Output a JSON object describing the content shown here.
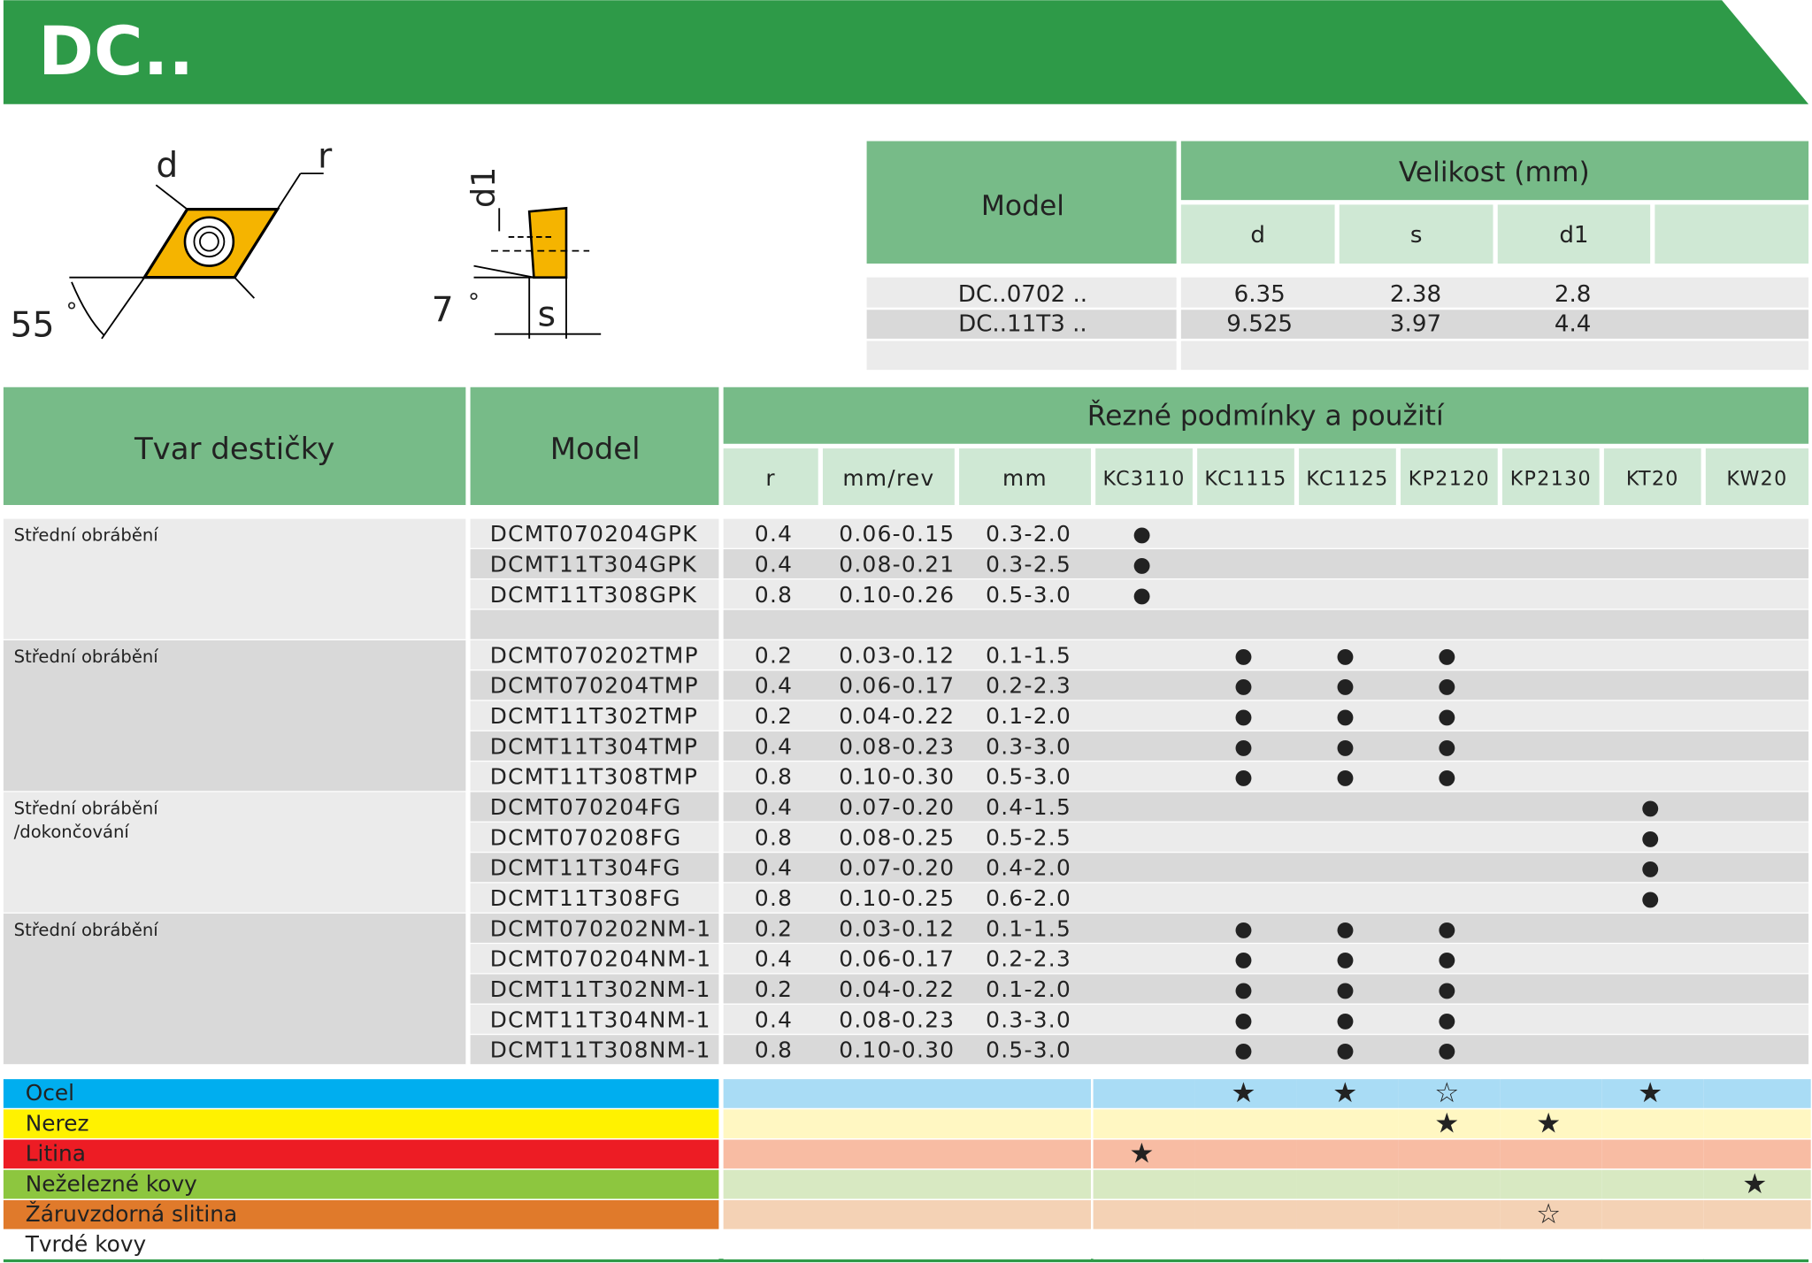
{
  "header": {
    "title": "DC.."
  },
  "diagram": {
    "front": {
      "d": "d",
      "r": "r",
      "angle": "55",
      "degree": "°"
    },
    "side": {
      "d1": "d1",
      "angle": "7",
      "degree": "°",
      "s": "s"
    }
  },
  "size_table": {
    "model_header": "Model",
    "size_header": "Velikost (mm)",
    "columns": [
      "d",
      "s",
      "d1"
    ],
    "rows": [
      [
        "DC..0702 ..",
        "6.35",
        "2.38",
        "2.8"
      ],
      [
        "DC..11T3 ..",
        "9.525",
        "3.97",
        "4.4"
      ]
    ]
  },
  "main_table": {
    "shape_header": "Tvar destičky",
    "model_header": "Model",
    "conditions_header": "Řezné podmínky a použití",
    "columns": [
      "r",
      "mm/rev",
      "mm",
      "KC3110",
      "KC1115",
      "KC1125",
      "KP2120",
      "KP2130",
      "KT20",
      "KW20"
    ],
    "groups": [
      {
        "label": [
          "Střední obrábění"
        ],
        "rows": [
          [
            "DCMT070204GPK",
            "0.4",
            "0.06-0.15",
            "0.3-2.0",
            "●",
            null,
            null,
            null,
            null,
            null,
            null
          ],
          [
            "DCMT11T304GPK",
            "0.4",
            "0.08-0.21",
            "0.3-2.5",
            "●",
            null,
            null,
            null,
            null,
            null,
            null
          ],
          [
            "DCMT11T308GPK",
            "0.8",
            "0.10-0.26",
            "0.5-3.0",
            "●",
            null,
            null,
            null,
            null,
            null,
            null
          ]
        ]
      },
      {
        "label": [
          "Střední obrábění"
        ],
        "rows": [
          [
            "DCMT070202TMP",
            "0.2",
            "0.03-0.12",
            "0.1-1.5",
            null,
            "●",
            "●",
            "●",
            null,
            null,
            null
          ],
          [
            "DCMT070204TMP",
            "0.4",
            "0.06-0.17",
            "0.2-2.3",
            null,
            "●",
            "●",
            "●",
            null,
            null,
            null
          ],
          [
            "DCMT11T302TMP",
            "0.2",
            "0.04-0.22",
            "0.1-2.0",
            null,
            "●",
            "●",
            "●",
            null,
            null,
            null
          ],
          [
            "DCMT11T304TMP",
            "0.4",
            "0.08-0.23",
            "0.3-3.0",
            null,
            "●",
            "●",
            "●",
            null,
            null,
            null
          ],
          [
            "DCMT11T308TMP",
            "0.8",
            "0.10-0.30",
            "0.5-3.0",
            null,
            "●",
            "●",
            "●",
            null,
            null,
            null
          ]
        ]
      },
      {
        "label": [
          "Střední obrábění",
          "/dokončování"
        ],
        "rows": [
          [
            "DCMT070204FG",
            "0.4",
            "0.07-0.20",
            "0.4-1.5",
            null,
            null,
            null,
            null,
            null,
            "●",
            null
          ],
          [
            "DCMT070208FG",
            "0.8",
            "0.08-0.25",
            "0.5-2.5",
            null,
            null,
            null,
            null,
            null,
            "●",
            null
          ],
          [
            "DCMT11T304FG",
            "0.4",
            "0.07-0.20",
            "0.4-2.0",
            null,
            null,
            null,
            null,
            null,
            "●",
            null
          ],
          [
            "DCMT11T308FG",
            "0.8",
            "0.10-0.25",
            "0.6-2.0",
            null,
            null,
            null,
            null,
            null,
            "●",
            null
          ]
        ]
      },
      {
        "label": [
          "Střední obrábění"
        ],
        "rows": [
          [
            "DCMT070202NM-1",
            "0.2",
            "0.03-0.12",
            "0.1-1.5",
            null,
            "●",
            "●",
            "●",
            null,
            null,
            null
          ],
          [
            "DCMT070204NM-1",
            "0.4",
            "0.06-0.17",
            "0.2-2.3",
            null,
            "●",
            "●",
            "●",
            null,
            null,
            null
          ],
          [
            "DCMT11T302NM-1",
            "0.2",
            "0.04-0.22",
            "0.1-2.0",
            null,
            "●",
            "●",
            "●",
            null,
            null,
            null
          ],
          [
            "DCMT11T304NM-1",
            "0.4",
            "0.08-0.23",
            "0.3-3.0",
            null,
            "●",
            "●",
            "●",
            null,
            null,
            null
          ],
          [
            "DCMT11T308NM-1",
            "0.8",
            "0.10-0.30",
            "0.5-3.0",
            null,
            "●",
            "●",
            "●",
            null,
            null,
            null
          ]
        ]
      }
    ]
  },
  "materials": [
    {
      "name": "Ocel",
      "color": "#00aeef",
      "tint": "#a9dcf5",
      "marks": [
        null,
        "★",
        "★",
        "☆",
        null,
        "★",
        null
      ]
    },
    {
      "name": "Nerez",
      "color": "#fff200",
      "tint": "#fff7c2",
      "marks": [
        null,
        null,
        null,
        "★",
        "★",
        null,
        null
      ]
    },
    {
      "name": "Litina",
      "color": "#ed1c24",
      "tint": "#f8bca3",
      "marks": [
        "★",
        null,
        null,
        null,
        null,
        null,
        null
      ]
    },
    {
      "name": "Neželezné kovy",
      "color": "#8dc63f",
      "tint": "#d8e9c2",
      "marks": [
        null,
        null,
        null,
        null,
        null,
        null,
        "★"
      ]
    },
    {
      "name": "Žáruvzdorná slitina",
      "color": "#e07a2b",
      "tint": "#f4d2b5",
      "marks": [
        null,
        null,
        null,
        null,
        "☆",
        null,
        null
      ]
    },
    {
      "name": "Tvrdé kovy",
      "color": "#ffffff",
      "tint": "#ffffff",
      "marks": [
        null,
        null,
        null,
        null,
        null,
        null,
        null
      ]
    }
  ]
}
